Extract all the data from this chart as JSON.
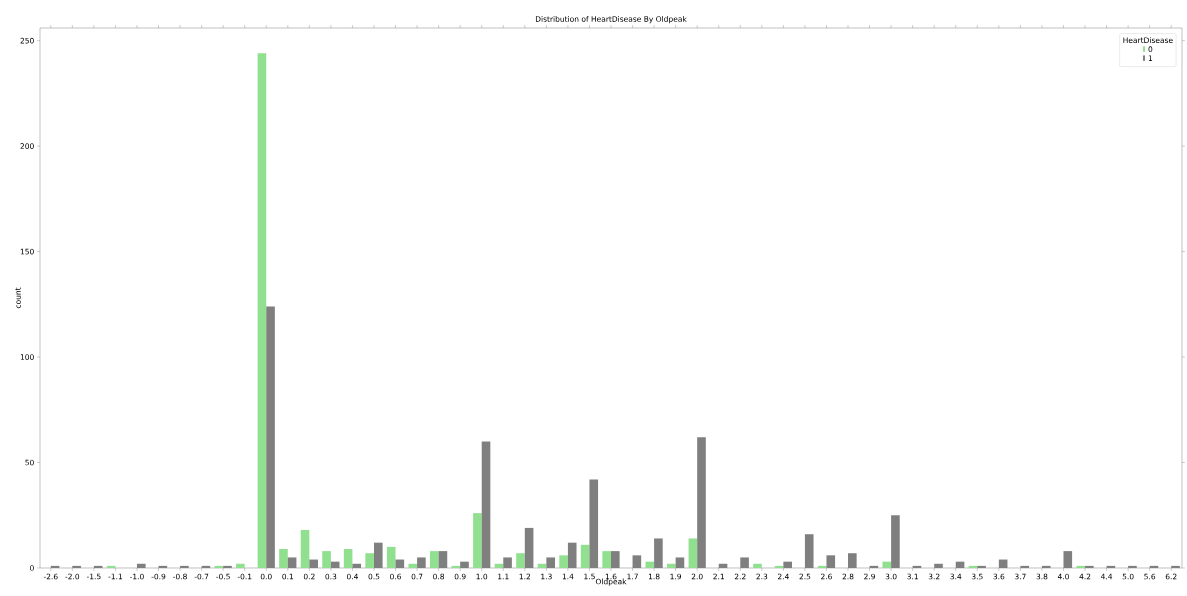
{
  "chart_data": {
    "type": "bar",
    "title": "Distribution of HeartDisease By Oldpeak",
    "xlabel": "Oldpeak",
    "ylabel": "count",
    "legend_title": "HeartDisease",
    "legend": "top right",
    "categories": [
      "-2.6",
      "-2.0",
      "-1.5",
      "-1.1",
      "-1.0",
      "-0.9",
      "-0.8",
      "-0.7",
      "-0.5",
      "-0.1",
      "0.0",
      "0.1",
      "0.2",
      "0.3",
      "0.4",
      "0.5",
      "0.6",
      "0.7",
      "0.8",
      "0.9",
      "1.0",
      "1.1",
      "1.2",
      "1.3",
      "1.4",
      "1.5",
      "1.6",
      "1.7",
      "1.8",
      "1.9",
      "2.0",
      "2.1",
      "2.2",
      "2.3",
      "2.4",
      "2.5",
      "2.6",
      "2.8",
      "2.9",
      "3.0",
      "3.1",
      "3.2",
      "3.4",
      "3.5",
      "3.6",
      "3.7",
      "3.8",
      "4.0",
      "4.2",
      "4.4",
      "5.0",
      "5.6",
      "6.2"
    ],
    "series": [
      {
        "name": "0",
        "color": "#90e090",
        "values": [
          0,
          0,
          0,
          1,
          0,
          0,
          0,
          0,
          1,
          2,
          244,
          9,
          18,
          8,
          9,
          7,
          10,
          2,
          8,
          1,
          26,
          2,
          7,
          2,
          6,
          11,
          8,
          0,
          3,
          2,
          14,
          0,
          0,
          2,
          1,
          0,
          1,
          0,
          0,
          3,
          0,
          0,
          0,
          1,
          0,
          0,
          0,
          0,
          1,
          0,
          0,
          0,
          0
        ]
      },
      {
        "name": "1",
        "color": "#7f7f7f",
        "values": [
          1,
          1,
          1,
          0,
          2,
          1,
          1,
          1,
          1,
          0,
          124,
          5,
          4,
          3,
          2,
          12,
          4,
          5,
          8,
          3,
          60,
          5,
          19,
          5,
          12,
          42,
          8,
          6,
          14,
          5,
          62,
          2,
          5,
          0,
          3,
          16,
          6,
          7,
          1,
          25,
          1,
          2,
          3,
          1,
          4,
          1,
          1,
          8,
          1,
          1,
          1,
          1,
          1
        ]
      }
    ],
    "ylim": [
      0,
      256
    ],
    "yticks": [
      0,
      50,
      100,
      150,
      200,
      250
    ]
  }
}
